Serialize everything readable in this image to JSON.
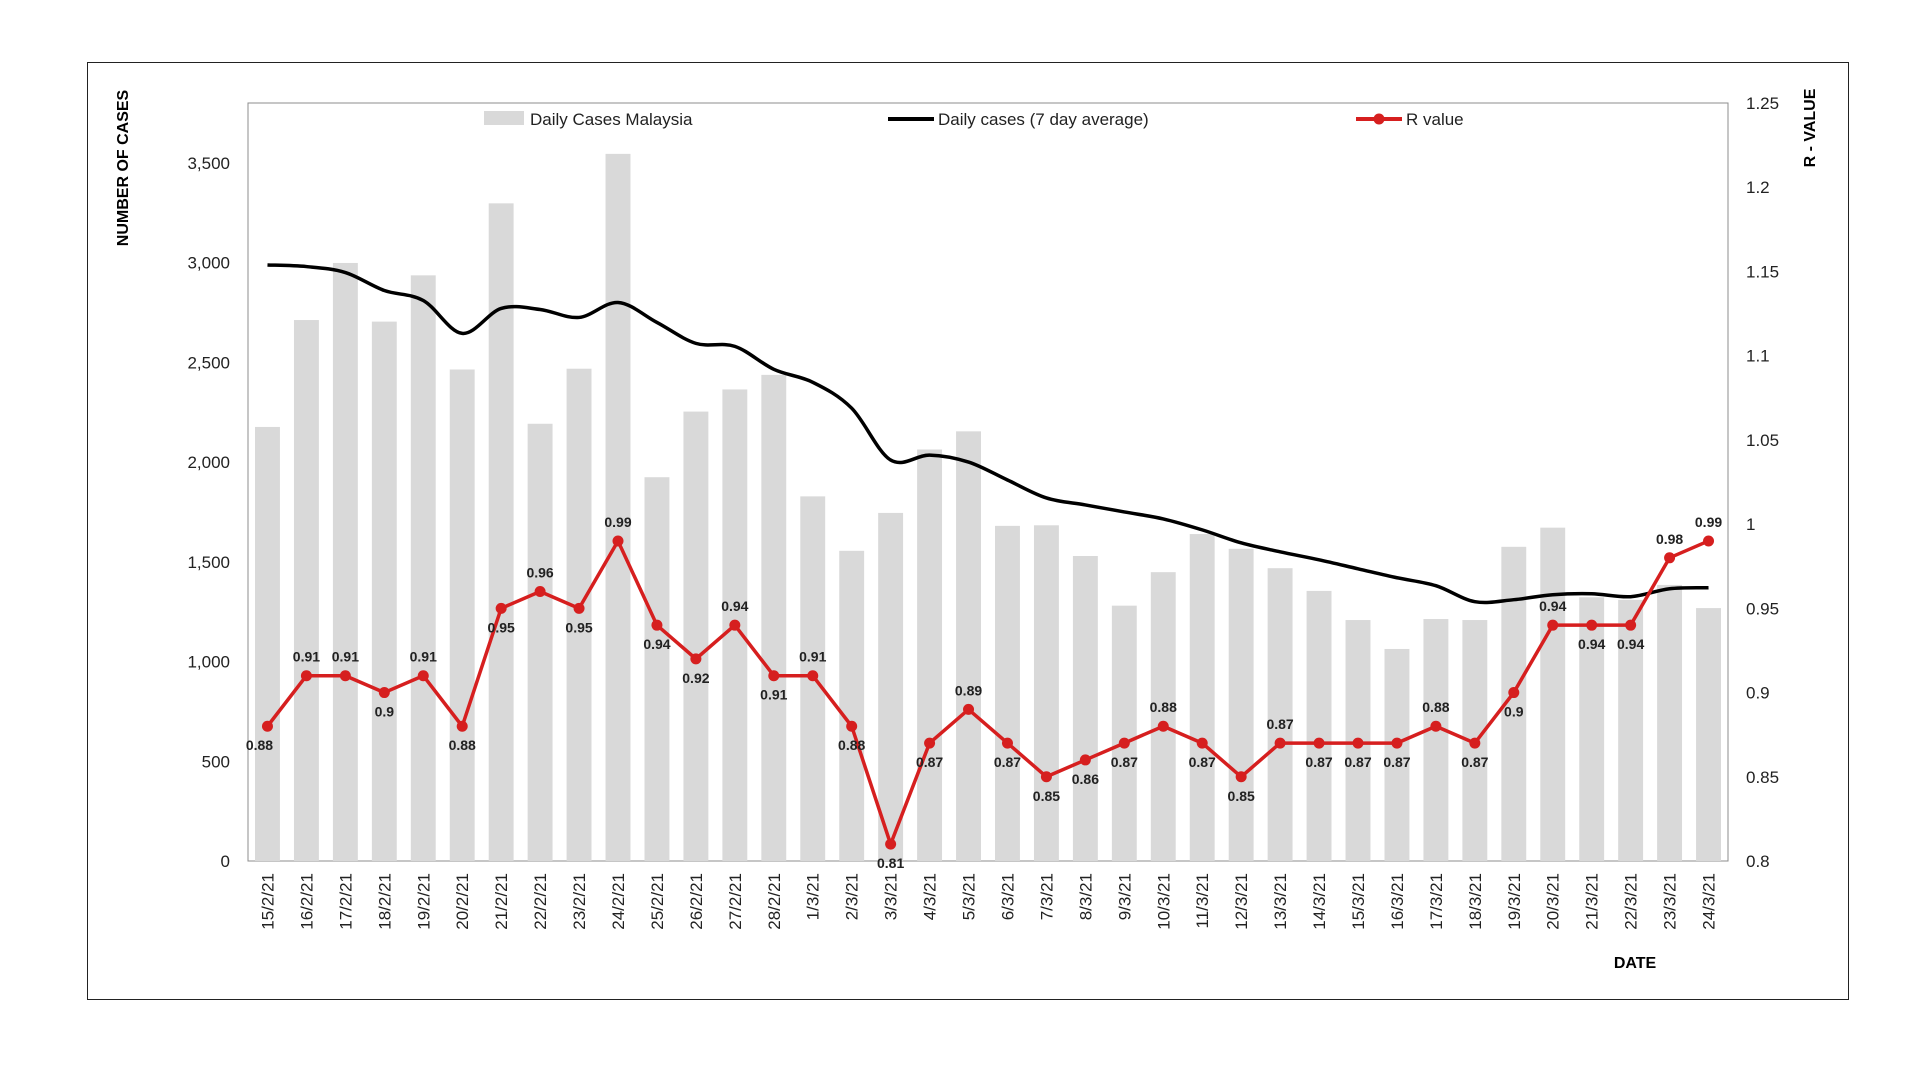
{
  "chart_data": {
    "type": "bar",
    "xlabel": "DATE",
    "ylabel": "NUMBER  OF CASES",
    "y2label": "R - VALUE",
    "ylim": [
      0,
      3800
    ],
    "y2lim": [
      0.8,
      1.25
    ],
    "yticks": [
      0,
      500,
      1000,
      1500,
      2000,
      2500,
      3000,
      3500
    ],
    "ytick_labels": [
      "0",
      "500",
      "1,000",
      "1,500",
      "2,000",
      "2,500",
      "3,000",
      "3,500"
    ],
    "y2ticks": [
      0.8,
      0.85,
      0.9,
      0.95,
      1,
      1.05,
      1.1,
      1.15,
      1.2,
      1.25
    ],
    "y2tick_labels": [
      "0.8",
      "0.85",
      "0.9",
      "0.95",
      "1",
      "1.05",
      "1.1",
      "1.15",
      "1.2",
      "1.25"
    ],
    "categories": [
      "15/2/21",
      "16/2/21",
      "17/2/21",
      "18/2/21",
      "19/2/21",
      "20/2/21",
      "21/2/21",
      "22/2/21",
      "23/2/21",
      "24/2/21",
      "25/2/21",
      "26/2/21",
      "27/2/21",
      "28/2/21",
      "1/3/21",
      "2/3/21",
      "3/3/21",
      "4/3/21",
      "5/3/21",
      "6/3/21",
      "7/3/21",
      "8/3/21",
      "9/3/21",
      "10/3/21",
      "11/3/21",
      "12/3/21",
      "13/3/21",
      "14/3/21",
      "15/3/21",
      "16/3/21",
      "17/3/21",
      "18/3/21",
      "19/3/21",
      "20/3/21",
      "21/3/21",
      "22/3/21",
      "23/3/21",
      "24/3/21"
    ],
    "series": [
      {
        "name": "Daily Cases Malaysia",
        "type": "bar",
        "color": "#d9d9d9",
        "axis": "left",
        "values": [
          2176,
          2712,
          2998,
          2704,
          2936,
          2464,
          3297,
          2192,
          2468,
          3545,
          1924,
          2253,
          2364,
          2437,
          1828,
          1555,
          1745,
          2063,
          2154,
          1680,
          1683,
          1529,
          1280,
          1448,
          1639,
          1565,
          1468,
          1354,
          1208,
          1063,
          1213,
          1208,
          1575,
          1671,
          1322,
          1309,
          1384,
          1268
        ]
      },
      {
        "name": "Daily cases (7 day average)",
        "type": "line",
        "color": "#000000",
        "axis": "left",
        "values": [
          2988,
          2980,
          2950,
          2860,
          2810,
          2645,
          2770,
          2765,
          2725,
          2800,
          2700,
          2595,
          2580,
          2465,
          2400,
          2270,
          2010,
          2035,
          2000,
          1910,
          1820,
          1785,
          1750,
          1715,
          1660,
          1595,
          1550,
          1510,
          1465,
          1420,
          1380,
          1300,
          1310,
          1335,
          1340,
          1325,
          1365,
          1370
        ]
      },
      {
        "name": "R value",
        "type": "line",
        "color": "#d61f1f",
        "axis": "right",
        "values": [
          0.88,
          0.91,
          0.91,
          0.9,
          0.91,
          0.88,
          0.95,
          0.96,
          0.95,
          0.99,
          0.94,
          0.92,
          0.94,
          0.91,
          0.91,
          0.88,
          0.81,
          0.87,
          0.89,
          0.87,
          0.85,
          0.86,
          0.87,
          0.88,
          0.87,
          0.85,
          0.87,
          0.87,
          0.87,
          0.87,
          0.88,
          0.87,
          0.9,
          0.94,
          0.94,
          0.94,
          0.98,
          0.99
        ],
        "labels": [
          "0.88",
          "0.91",
          "0.91",
          "0.9",
          "0.91",
          "0.88",
          "0.95",
          "0.96",
          "0.95",
          "0.99",
          "0.94",
          "0.92",
          "0.94",
          "0.91",
          "0.91",
          "0.88",
          "0.81",
          "0.87",
          "0.89",
          "0.87",
          "0.85",
          "0.86",
          "0.87",
          "0.88",
          "0.87",
          "0.85",
          "0.87",
          "0.87",
          "0.87",
          "0.87",
          "0.88",
          "0.87",
          "0.9",
          "0.94",
          "0.94",
          "0.94",
          "0.98",
          "0.99"
        ]
      }
    ],
    "legend": {
      "position": "top",
      "entries": [
        "Daily Cases Malaysia",
        "Daily cases (7 day average)",
        "R value"
      ]
    },
    "grid": false
  }
}
